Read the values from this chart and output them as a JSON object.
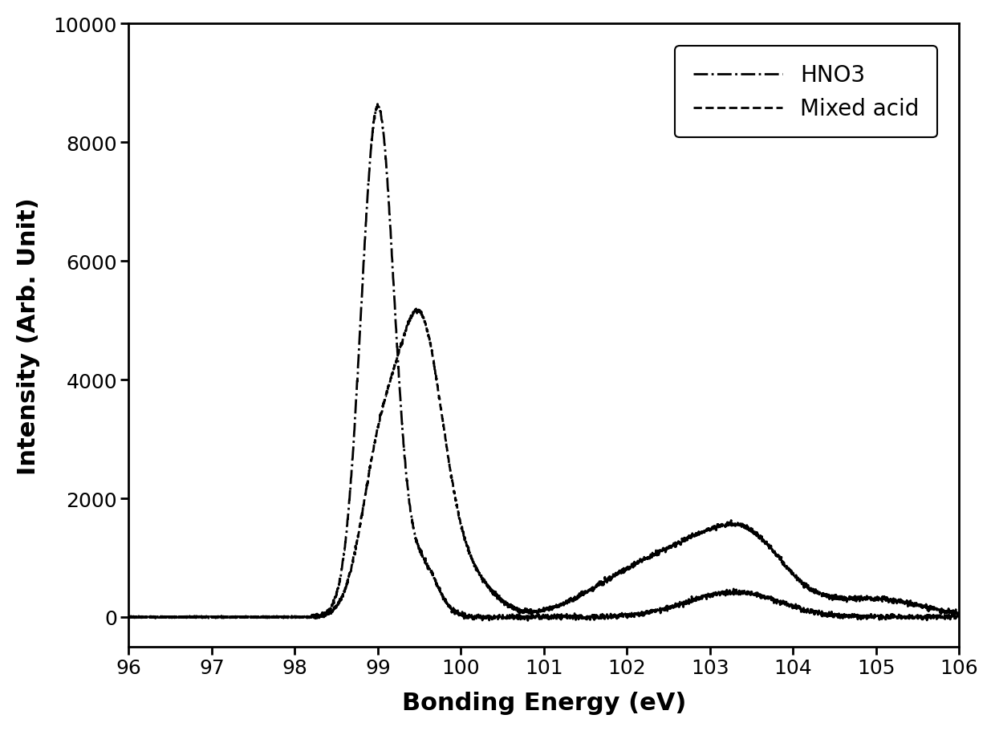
{
  "title": "",
  "xlabel": "Bonding Energy (eV)",
  "ylabel": "Intensity (Arb. Unit)",
  "xlim": [
    96,
    106
  ],
  "ylim": [
    -500,
    10000
  ],
  "yticks": [
    0,
    2000,
    4000,
    6000,
    8000,
    10000
  ],
  "xticks": [
    96,
    97,
    98,
    99,
    100,
    101,
    102,
    103,
    104,
    105,
    106
  ],
  "line_color": "#000000",
  "legend_hno3": "HNO3",
  "legend_mixed": "Mixed acid",
  "linewidth": 2.0,
  "background_color": "#ffffff"
}
